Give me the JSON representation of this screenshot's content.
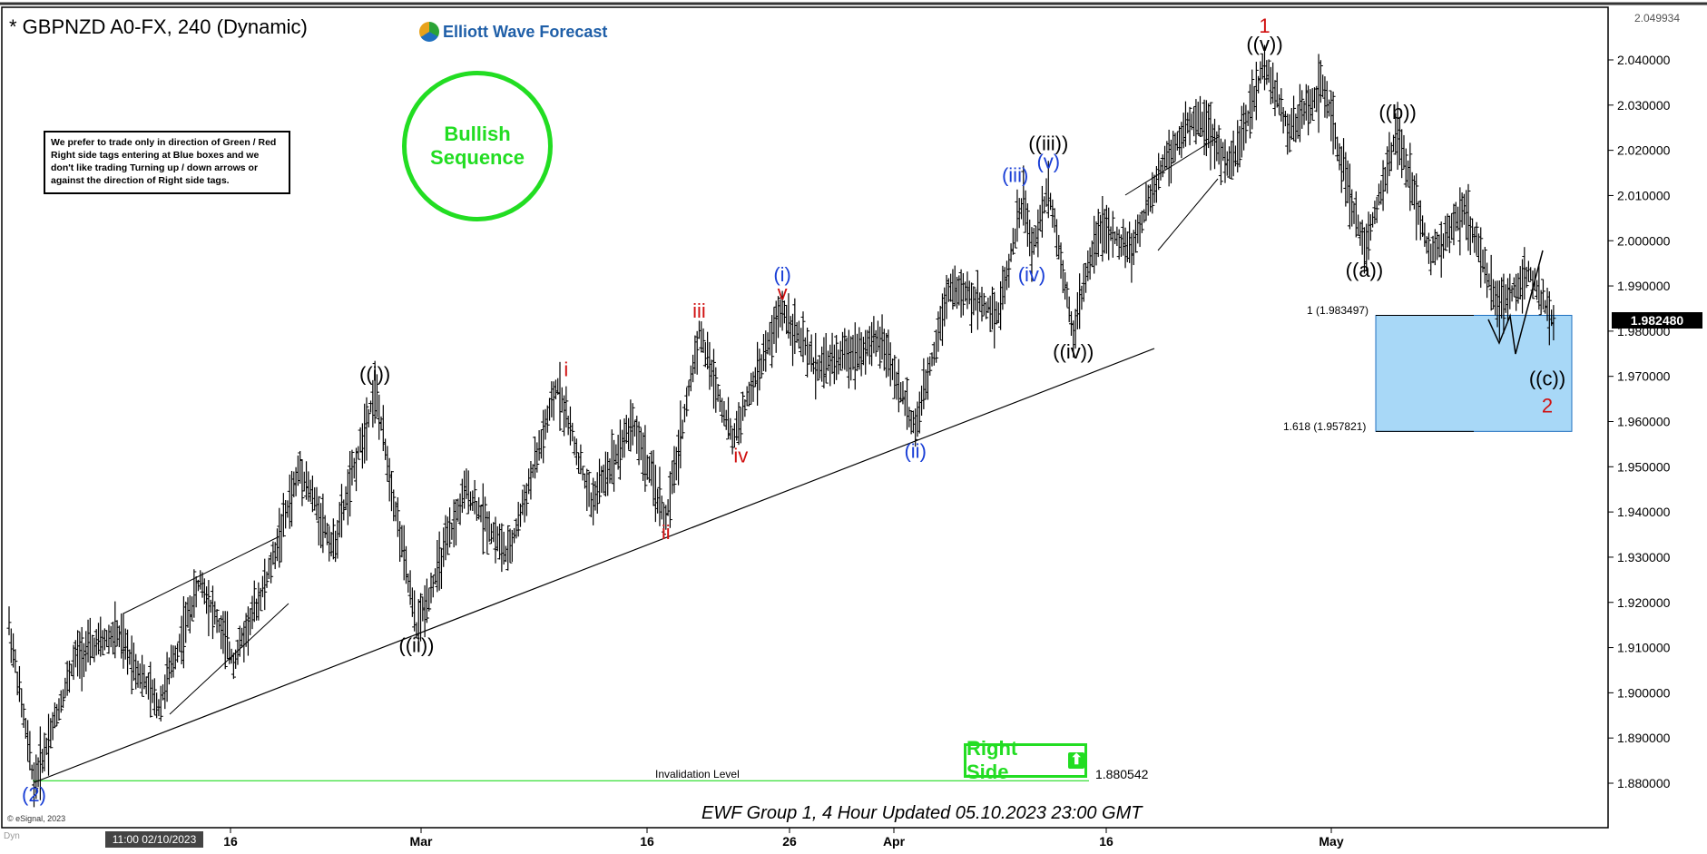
{
  "header": {
    "title": "* GBPNZD A0-FX, 240 (Dynamic)",
    "logo_text": "Elliott Wave Forecast"
  },
  "disclaimer": "We prefer to trade only in direction of Green / Red Right side tags entering at Blue boxes and we don't like trading Turning up / down arrows or against the direction of Right side tags.",
  "badge": {
    "bullish_line1": "Bullish",
    "bullish_line2": "Sequence"
  },
  "right_side": {
    "label": "Right Side",
    "arrow": "⬆"
  },
  "footer": {
    "text": "EWF Group 1, 4 Hour Updated 05.10.2023 23:00 GMT",
    "copyright": "© eSignal, 2023"
  },
  "tags": {
    "last_price": "1.982480",
    "top_price": "2.049934",
    "crosshair_date": "11:00 02/10/2023",
    "dyn": "Dyn"
  },
  "colors": {
    "green": "#22dd22",
    "blue_box": "#a8d8f7",
    "wave_black": "#000000",
    "wave_blue": "#1a3fd6",
    "wave_red": "#d01010"
  },
  "chart_data": {
    "type": "bar",
    "title": "* GBPNZD A0-FX, 240 (Dynamic)",
    "instrument": "GBPNZD",
    "timeframe": "240",
    "ylim": [
      1.875,
      2.05
    ],
    "y_ticks": [
      "2.040000",
      "2.030000",
      "2.020000",
      "2.010000",
      "2.000000",
      "1.990000",
      "1.980000",
      "1.970000",
      "1.960000",
      "1.950000",
      "1.940000",
      "1.930000",
      "1.920000",
      "1.910000",
      "1.900000",
      "1.890000",
      "1.880000"
    ],
    "x_ticks": [
      "16",
      "Mar",
      "16",
      "26",
      "Apr",
      "16",
      "May"
    ],
    "price_path": [
      {
        "x": 0,
        "y": 1.915
      },
      {
        "x": 3,
        "y": 1.88
      },
      {
        "x": 8,
        "y": 1.908
      },
      {
        "x": 13,
        "y": 1.913
      },
      {
        "x": 18,
        "y": 1.897
      },
      {
        "x": 23,
        "y": 1.925
      },
      {
        "x": 27,
        "y": 1.907
      },
      {
        "x": 31,
        "y": 1.925
      },
      {
        "x": 35,
        "y": 1.95
      },
      {
        "x": 39,
        "y": 1.932
      },
      {
        "x": 44,
        "y": 1.967
      },
      {
        "x": 49,
        "y": 1.914
      },
      {
        "x": 55,
        "y": 1.945
      },
      {
        "x": 60,
        "y": 1.93
      },
      {
        "x": 66,
        "y": 1.968
      },
      {
        "x": 70,
        "y": 1.942
      },
      {
        "x": 75,
        "y": 1.96
      },
      {
        "x": 79,
        "y": 1.938
      },
      {
        "x": 83,
        "y": 1.98
      },
      {
        "x": 87,
        "y": 1.956
      },
      {
        "x": 93,
        "y": 1.985
      },
      {
        "x": 97,
        "y": 1.972
      },
      {
        "x": 105,
        "y": 1.978
      },
      {
        "x": 109,
        "y": 1.958
      },
      {
        "x": 113,
        "y": 1.99
      },
      {
        "x": 119,
        "y": 1.984
      },
      {
        "x": 122,
        "y": 2.01
      },
      {
        "x": 123,
        "y": 1.997
      },
      {
        "x": 125,
        "y": 2.012
      },
      {
        "x": 128,
        "y": 1.98
      },
      {
        "x": 131,
        "y": 2.003
      },
      {
        "x": 135,
        "y": 1.998
      },
      {
        "x": 139,
        "y": 2.018
      },
      {
        "x": 143,
        "y": 2.028
      },
      {
        "x": 147,
        "y": 2.016
      },
      {
        "x": 151,
        "y": 2.039
      },
      {
        "x": 154,
        "y": 2.024
      },
      {
        "x": 158,
        "y": 2.034
      },
      {
        "x": 163,
        "y": 1.998
      },
      {
        "x": 167,
        "y": 2.024
      },
      {
        "x": 171,
        "y": 1.996
      },
      {
        "x": 175,
        "y": 2.007
      },
      {
        "x": 179,
        "y": 1.986
      },
      {
        "x": 183,
        "y": 1.993
      },
      {
        "x": 186,
        "y": 1.98
      }
    ],
    "wave_labels": [
      {
        "text": "(2)",
        "color": "blue",
        "x": 3,
        "y": 1.876
      },
      {
        "text": "((i))",
        "color": "black",
        "x": 44,
        "y": 1.969
      },
      {
        "text": "((ii))",
        "color": "black",
        "x": 49,
        "y": 1.909
      },
      {
        "text": "i",
        "color": "red",
        "x": 67,
        "y": 1.97
      },
      {
        "text": "ii",
        "color": "red",
        "x": 79,
        "y": 1.934
      },
      {
        "text": "iii",
        "color": "red",
        "x": 83,
        "y": 1.983
      },
      {
        "text": "iv",
        "color": "red",
        "x": 88,
        "y": 1.951
      },
      {
        "text": "(i)",
        "color": "blue",
        "x": 93,
        "y": 1.991
      },
      {
        "text": "v",
        "color": "red",
        "x": 93,
        "y": 1.987
      },
      {
        "text": "(ii)",
        "color": "blue",
        "x": 109,
        "y": 1.952
      },
      {
        "text": "(iii)",
        "color": "blue",
        "x": 121,
        "y": 2.013
      },
      {
        "text": "((iii))",
        "color": "black",
        "x": 125,
        "y": 2.02
      },
      {
        "text": "(v)",
        "color": "blue",
        "x": 125,
        "y": 2.016
      },
      {
        "text": "(iv)",
        "color": "blue",
        "x": 123,
        "y": 1.991
      },
      {
        "text": "((iv))",
        "color": "black",
        "x": 128,
        "y": 1.974
      },
      {
        "text": "1",
        "color": "red",
        "x": 151,
        "y": 2.046
      },
      {
        "text": "((v))",
        "color": "black",
        "x": 151,
        "y": 2.042
      },
      {
        "text": "((b))",
        "color": "black",
        "x": 167,
        "y": 2.027
      },
      {
        "text": "((a))",
        "color": "black",
        "x": 163,
        "y": 1.992
      },
      {
        "text": "((c))",
        "color": "black",
        "x": 185,
        "y": 1.968
      },
      {
        "text": "2",
        "color": "red",
        "x": 185,
        "y": 1.962
      }
    ],
    "annotations": [
      {
        "text": "Invalidation Level",
        "value": "1.880542"
      },
      {
        "text": "1 (1.983497)"
      },
      {
        "text": "1.618 (1.957821)"
      }
    ],
    "blue_box": {
      "y_top": 1.983497,
      "y_bottom": 1.957821
    },
    "invalidation_level": 1.880542,
    "grid": false
  }
}
